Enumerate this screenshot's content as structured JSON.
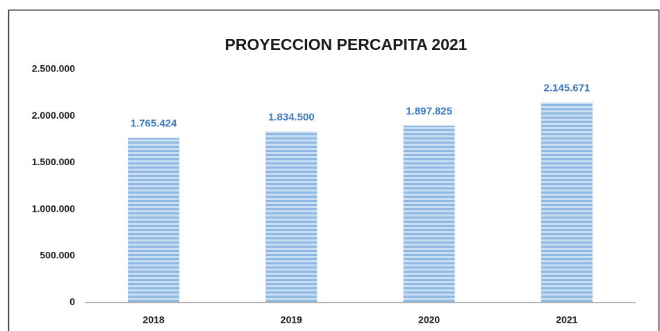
{
  "chart_data": {
    "type": "bar",
    "title": "PROYECCION PERCAPITA 2021",
    "categories": [
      "2018",
      "2019",
      "2020",
      "2021"
    ],
    "values": [
      1765424,
      1834500,
      1897825,
      2145671
    ],
    "value_labels": [
      "1.765.424",
      "1.834.500",
      "1.897.825",
      "2.145.671"
    ],
    "color": "#9dc3e6",
    "ylim": [
      0,
      2500000
    ],
    "yticks": [
      0,
      {
        "value": 500000,
        "label": "500.000"
      },
      {
        "value": 1000000,
        "label": "1.000.000"
      },
      {
        "value": 1500000,
        "label": "1.500.000"
      },
      {
        "value": 2000000,
        "label": "2.000.000"
      },
      {
        "value": 2500000,
        "label": "2.500.000"
      }
    ],
    "grid": false
  }
}
